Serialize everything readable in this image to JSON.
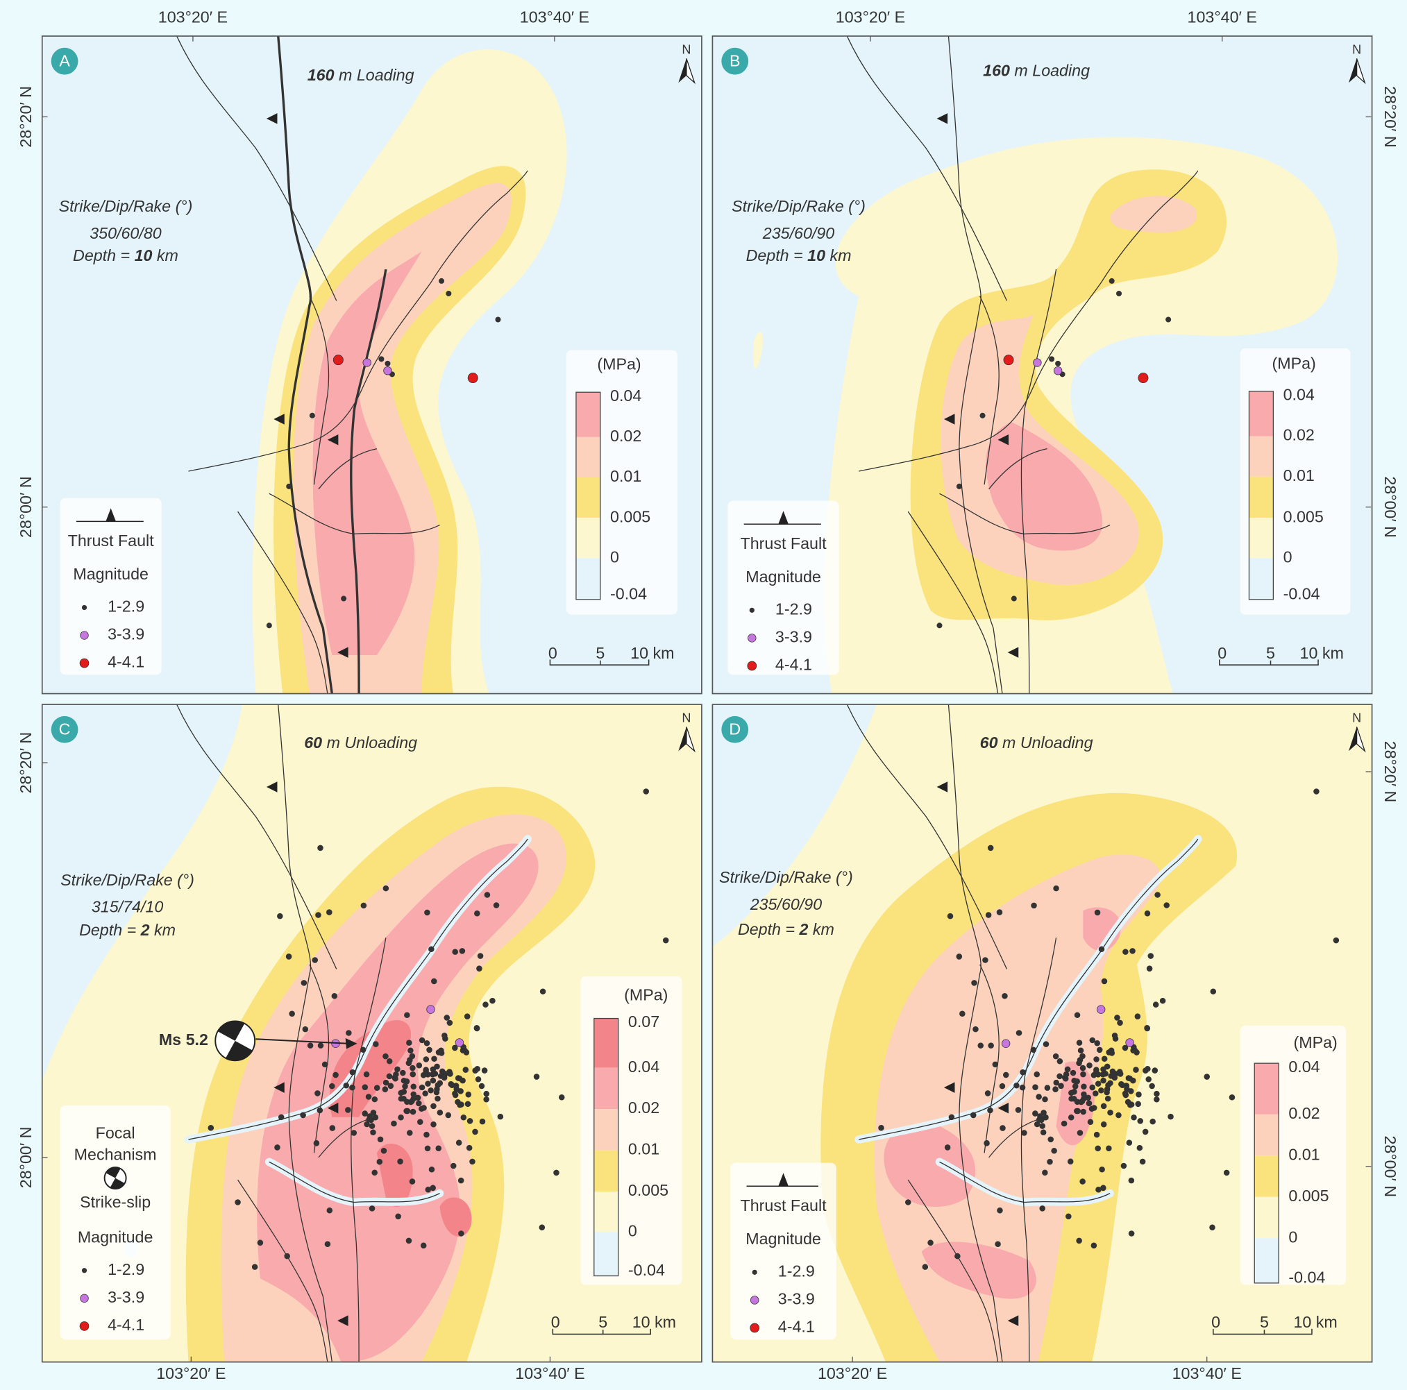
{
  "graticule": {
    "longitudes": [
      "103°20′ E",
      "103°40′ E"
    ],
    "latitudes": [
      "28°20′ N",
      "28°00′ N"
    ]
  },
  "north_arrow": "N",
  "panels": [
    {
      "label": "A",
      "scenario_value": "160",
      "scenario_text": "m Loading",
      "receiver": {
        "heading": "Strike/Dip/Rake (°)",
        "angles": "350/60/80",
        "depth_label": "Depth =",
        "depth_value": "10",
        "depth_unit": "km"
      },
      "colorbar": {
        "unit": "(MPa)",
        "ticks": [
          "0.04",
          "0.02",
          "0.01",
          "0.005",
          "0",
          "-0.04"
        ]
      },
      "scale_bar": [
        "0",
        "5",
        "10 km"
      ],
      "legend": {
        "thrust_fault": "Thrust Fault",
        "magnitude": "Magnitude",
        "classes": [
          "1-2.9",
          "3-3.9",
          "4-4.1"
        ]
      }
    },
    {
      "label": "B",
      "scenario_value": "160",
      "scenario_text": "m Loading",
      "receiver": {
        "heading": "Strike/Dip/Rake (°)",
        "angles": "235/60/90",
        "depth_label": "Depth =",
        "depth_value": "10",
        "depth_unit": "km"
      },
      "colorbar": {
        "unit": "(MPa)",
        "ticks": [
          "0.04",
          "0.02",
          "0.01",
          "0.005",
          "0",
          "-0.04"
        ]
      },
      "scale_bar": [
        "0",
        "5",
        "10 km"
      ],
      "legend": {
        "thrust_fault": "Thrust Fault",
        "magnitude": "Magnitude",
        "classes": [
          "1-2.9",
          "3-3.9",
          "4-4.1"
        ]
      }
    },
    {
      "label": "C",
      "scenario_value": "60",
      "scenario_text": "m Unloading",
      "receiver": {
        "heading": "Strike/Dip/Rake (°)",
        "angles": "315/74/10",
        "depth_label": "Depth =",
        "depth_value": "2",
        "depth_unit": "km"
      },
      "colorbar": {
        "unit": "(MPa)",
        "ticks": [
          "0.07",
          "0.04",
          "0.02",
          "0.01",
          "0.005",
          "0",
          "-0.04"
        ]
      },
      "scale_bar": [
        "0",
        "5",
        "10 km"
      ],
      "annotation": "Ms 5.2",
      "legend": {
        "focal_mechanism": [
          "Focal",
          "Mechanism"
        ],
        "focal_type": "Strike-slip",
        "magnitude": "Magnitude",
        "classes": [
          "1-2.9",
          "3-3.9",
          "4-4.1"
        ]
      }
    },
    {
      "label": "D",
      "scenario_value": "60",
      "scenario_text": "m Unloading",
      "receiver": {
        "heading": "Strike/Dip/Rake (°)",
        "angles": "235/60/90",
        "depth_label": "Depth =",
        "depth_value": "2",
        "depth_unit": "km"
      },
      "colorbar": {
        "unit": "(MPa)",
        "ticks": [
          "0.04",
          "0.02",
          "0.01",
          "0.005",
          "0",
          "-0.04"
        ]
      },
      "scale_bar": [
        "0",
        "5",
        "10 km"
      ],
      "legend": {
        "thrust_fault": "Thrust Fault",
        "magnitude": "Magnitude",
        "classes": [
          "1-2.9",
          "3-3.9",
          "4-4.1"
        ]
      }
    }
  ]
}
